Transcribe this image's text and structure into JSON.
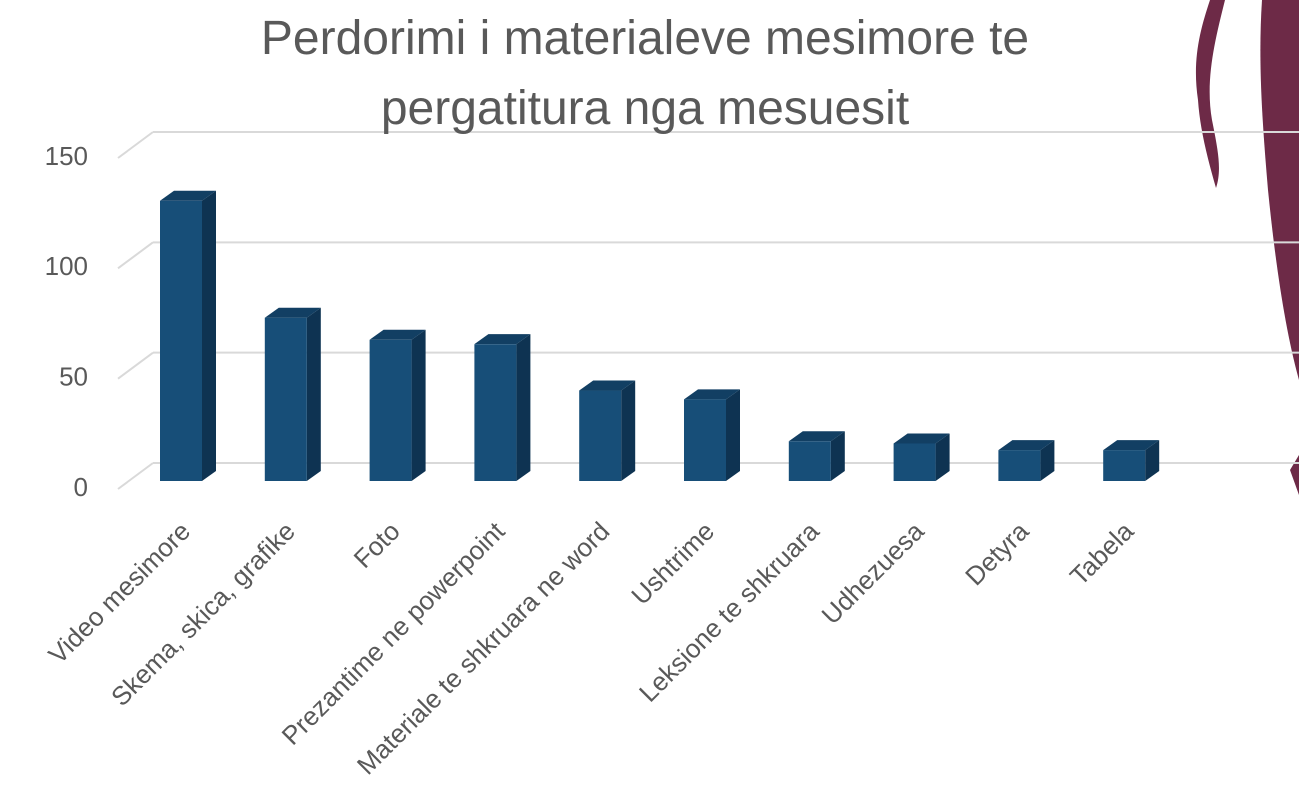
{
  "chart_data": {
    "type": "bar3d",
    "title": "Perdorimi i materialeve mesimore te pergatitura nga mesuesit",
    "categories": [
      "Video mesimore",
      "Skema, skica, grafike",
      "Foto",
      "Prezantime ne powerpoint",
      "Materiale te shkruara ne word",
      "Ushtrime",
      "Leksione te shkruara",
      "Udhezuesa",
      "Detyra",
      "Tabela"
    ],
    "values": [
      127,
      74,
      64,
      62,
      41,
      37,
      18,
      17,
      14,
      14
    ],
    "color": "#174e78",
    "ylim": [
      0,
      150
    ],
    "yticks": [
      0,
      50,
      100,
      150
    ],
    "grid": true
  }
}
